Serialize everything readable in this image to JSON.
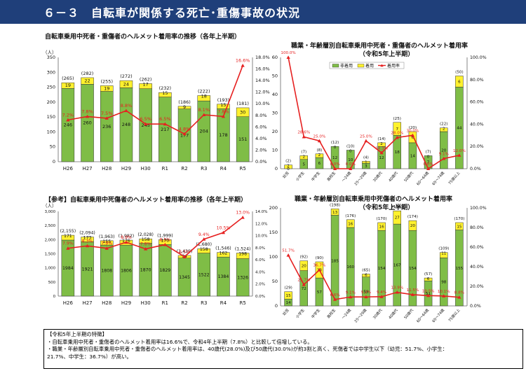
{
  "header": {
    "title": "６－３　自転車が関係する死亡･重傷事故の状況"
  },
  "legend": {
    "non_wearing": "非着用",
    "wearing": "着用",
    "rate": "着用率"
  },
  "colors": {
    "header_bg": "#1f3f7a",
    "non_wearing": "#7fbd46",
    "wearing": "#fff12e",
    "rate": "#e62020"
  },
  "notes": {
    "title": "【令和5年上半期の特徴】",
    "line1": "・自転車乗用中死者・重傷者のヘルメット着用率は16.6%で、令和4年上半期（7.8%）と比較して倍増している。",
    "line2": "・職業・年齢層別自転車乗用中死者・重傷者のヘルメット着用率は、40歳代(28.0%)及び50歳代(30.0%)が約3割と高く、死傷者では中学生以下（幼児：51.7%、小学生：",
    "line3": "21.7%、中学生：36.7%）が高い。"
  },
  "chart_data": [
    {
      "type": "bar",
      "title": "自転車乗用中死者・重傷者のヘルメット着用率の推移（各年上半期）",
      "ylabel": "（人）",
      "categories": [
        "H26",
        "H27",
        "H28",
        "H29",
        "H30",
        "R1",
        "R2",
        "R3",
        "R4",
        "R5"
      ],
      "ylim": [
        0,
        350
      ],
      "yticks": [
        0,
        50,
        100,
        150,
        200,
        250,
        300,
        350
      ],
      "y2lim": [
        0,
        18
      ],
      "y2ticks": [
        "0.0%",
        "2.0%",
        "4.0%",
        "6.0%",
        "8.0%",
        "10.0%",
        "12.0%",
        "14.0%",
        "16.0%",
        "18.0%"
      ],
      "series": [
        {
          "name": "非着用",
          "values": [
            246,
            260,
            236,
            248,
            245,
            217,
            177,
            204,
            178,
            151
          ]
        },
        {
          "name": "着用",
          "values": [
            19,
            22,
            19,
            24,
            17,
            15,
            9,
            18,
            15,
            30
          ]
        },
        {
          "name": "着用率",
          "values": [
            7.2,
            7.8,
            7.5,
            8.8,
            6.5,
            6.5,
            4.8,
            8.1,
            7.8,
            16.6
          ],
          "labels": [
            "7.2%",
            "7.8%",
            "7.5%",
            "8.8%",
            "6.5%",
            "6.5%",
            "4.8%",
            "8.1%",
            "7.8%",
            "16.6%"
          ]
        }
      ],
      "totals": [
        "(265)",
        "(282)",
        "(255)",
        "(272)",
        "(262)",
        "(232)",
        "(186)",
        "(222)",
        "(193)",
        "(181)"
      ],
      "grid": false,
      "legend": "top-right"
    },
    {
      "type": "bar",
      "title": "職業・年齢層別自転車乗用中死者・重傷者のヘルメット着用率",
      "subtitle": "（令和5年上半期）",
      "categories": [
        "幼児",
        "小学生",
        "中学生",
        "高校生",
        "～24歳",
        "25～29歳",
        "30歳代",
        "40歳代",
        "50歳代",
        "60～64歳",
        "65～74歳",
        "75歳以上"
      ],
      "ylim": [
        0,
        60
      ],
      "yticks": [
        0,
        10,
        20,
        30,
        40,
        50,
        60
      ],
      "y2lim": [
        0,
        100
      ],
      "y2ticks": [
        "0.0%",
        "20.0%",
        "40.0%",
        "60.0%",
        "80.0%",
        "100.0%"
      ],
      "series": [
        {
          "name": "非着用",
          "values": [
            0,
            5,
            6,
            12,
            10,
            3,
            12,
            18,
            14,
            7,
            20,
            44
          ]
        },
        {
          "name": "着用",
          "values": [
            2,
            2,
            2,
            0,
            0,
            1,
            2,
            7,
            6,
            0,
            2,
            6
          ]
        },
        {
          "name": "着用率",
          "values": [
            100,
            28.6,
            25,
            0,
            0,
            25,
            14.3,
            28,
            30,
            0,
            9.1,
            12
          ],
          "labels": [
            "100.0%",
            "28.6%",
            "25.0%",
            "0.0%",
            "0.0%",
            "25.0%",
            "14.3%",
            "28.0%",
            "30.0%",
            "0.0%",
            "9.1%",
            "12.0%"
          ]
        }
      ],
      "totals": [
        "(2)",
        "(7)",
        "(8)",
        "(12)",
        "(10)",
        "(4)",
        "(14)",
        "(25)",
        "(20)",
        "(7)",
        "(22)",
        "(50)"
      ],
      "grid": false,
      "legend": "top-center"
    },
    {
      "type": "bar",
      "title": "【参考】自転車乗用中死傷者のヘルメット着用率の推移（各年上半期）",
      "ylabel": "（人）",
      "categories": [
        "H26",
        "H27",
        "H28",
        "H29",
        "H30",
        "R1",
        "R2",
        "R3",
        "R4",
        "R5"
      ],
      "ylim": [
        0,
        3000
      ],
      "yticks": [
        "0",
        "500",
        "1,000",
        "1,500",
        "2,000",
        "2,500",
        "3,000"
      ],
      "y2lim": [
        0,
        14
      ],
      "y2ticks": [
        "0.0%",
        "2.0%",
        "4.0%",
        "6.0%",
        "8.0%",
        "10.0%",
        "12.0%",
        "14.0%"
      ],
      "series": [
        {
          "name": "非着用",
          "values": [
            1984,
            1921,
            1808,
            1806,
            1870,
            1829,
            1345,
            1522,
            1384,
            1326
          ]
        },
        {
          "name": "着用",
          "values": [
            171,
            173,
            155,
            176,
            158,
            170,
            94,
            158,
            162,
            198
          ]
        },
        {
          "name": "着用率",
          "values": [
            7.9,
            8.3,
            7.9,
            8.9,
            7.8,
            8.5,
            6.5,
            9.4,
            10.5,
            13.0
          ],
          "labels": [
            "7.9%",
            "8.3%",
            "7.9%",
            "8.9%",
            "7.8%",
            "8.5%",
            "6.5%",
            "9.4%",
            "10.5%",
            "13.0%"
          ]
        }
      ],
      "totals": [
        "(2,155)",
        "(2,094)",
        "(1,963)",
        "(1,982)",
        "(2,028)",
        "(1,999)",
        "(1,439)",
        "(1,680)",
        "(1,546)",
        "(1,524)"
      ],
      "grid": false,
      "legend": "none"
    },
    {
      "type": "bar",
      "title": "職業・年齢層別自転車乗用中死傷者のヘルメット着用率",
      "subtitle": "（令和5年上半期）",
      "categories": [
        "幼児",
        "小学生",
        "中学生",
        "高校生",
        "～24歳",
        "25～29歳",
        "30歳代",
        "40歳代",
        "50歳代",
        "60～64歳",
        "65～74歳",
        "75歳以上"
      ],
      "ylim": [
        0,
        200
      ],
      "yticks": [
        0,
        50,
        100,
        150,
        200
      ],
      "y2lim": [
        0,
        100
      ],
      "y2ticks": [
        "0.0%",
        "20.0%",
        "40.0%",
        "60.0%",
        "80.0%",
        "100.0%"
      ],
      "series": [
        {
          "name": "非着用",
          "values": [
            14,
            72,
            57,
            185,
            160,
            59,
            154,
            167,
            154,
            51,
            98,
            155
          ]
        },
        {
          "name": "着用",
          "values": [
            15,
            20,
            33,
            13,
            16,
            6,
            16,
            27,
            20,
            6,
            11,
            15
          ]
        },
        {
          "name": "着用率",
          "values": [
            51.7,
            21.7,
            36.7,
            6.6,
            9.1,
            9.2,
            9.4,
            13.9,
            11.5,
            10.5,
            10.1,
            8.8
          ],
          "labels": [
            "51.7%",
            "21.7%",
            "36.7%",
            "6.6%",
            "9.1%",
            "9.2%",
            "9.4%",
            "13.9%",
            "11.5%",
            "10.5%",
            "10.1%",
            "8.8%"
          ]
        }
      ],
      "totals": [
        "(29)",
        "(92)",
        "(90)",
        "(198)",
        "(176)",
        "(65)",
        "(170)",
        "(194)",
        "(174)",
        "(57)",
        "(109)",
        "(170)"
      ],
      "grid": false,
      "legend": "none"
    }
  ]
}
